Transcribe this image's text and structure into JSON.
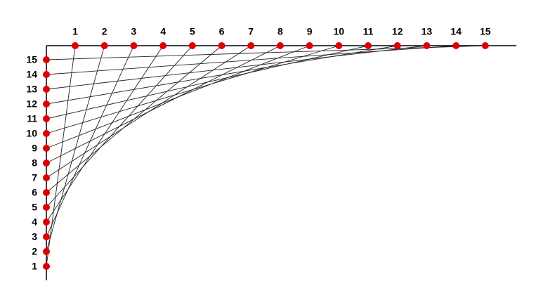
{
  "top_points": {
    "labels": [
      1,
      2,
      3,
      4,
      5,
      6,
      7,
      8,
      9,
      10,
      11,
      12,
      13,
      14,
      15
    ]
  },
  "left_points": {
    "labels": [
      1,
      2,
      3,
      4,
      5,
      6,
      7,
      8,
      9,
      10,
      11,
      12,
      13,
      14,
      15
    ]
  }
}
